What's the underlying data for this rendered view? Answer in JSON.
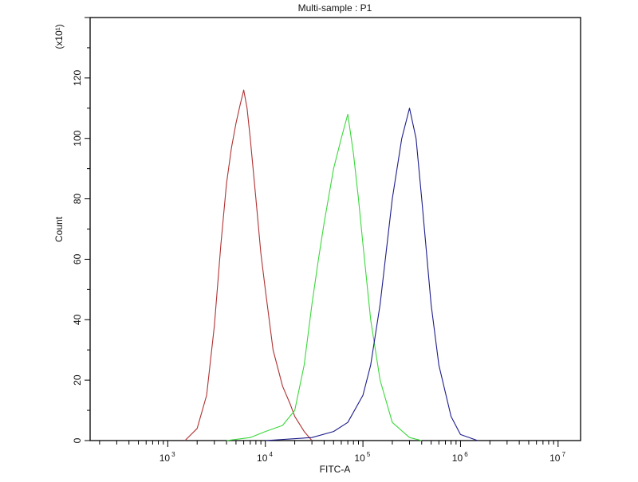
{
  "chart_data": {
    "type": "line",
    "title": "Multi-sample : P1",
    "xlabel": "FITC-A",
    "ylabel": "Count",
    "y_multiplier": "(x10¹)",
    "xscale": "log",
    "xlim": [
      160,
      17000000
    ],
    "ylim": [
      0,
      140
    ],
    "x_ticks": [
      1000,
      10000,
      100000,
      1000000,
      10000000
    ],
    "x_tick_labels": [
      [
        "10",
        "3"
      ],
      [
        "10",
        "4"
      ],
      [
        "10",
        "5"
      ],
      [
        "10",
        "6"
      ],
      [
        "10",
        "7"
      ]
    ],
    "y_ticks": [
      0,
      20,
      40,
      60,
      80,
      100,
      120
    ],
    "grid": false,
    "series": [
      {
        "color": "#b03232",
        "x": [
          1500,
          2000,
          2500,
          3000,
          3500,
          4000,
          4500,
          5000,
          5500,
          6000,
          6500,
          7000,
          8000,
          9000,
          10000,
          12000,
          15000,
          18000,
          20000,
          25000,
          30000
        ],
        "y": [
          0,
          4,
          15,
          38,
          65,
          85,
          97,
          105,
          111,
          116,
          110,
          100,
          80,
          62,
          50,
          30,
          18,
          12,
          8,
          3,
          0
        ]
      },
      {
        "color": "#3ad83a",
        "x": [
          4000,
          7000,
          10000,
          15000,
          20000,
          25000,
          30000,
          35000,
          40000,
          50000,
          60000,
          70000,
          80000,
          90000,
          100000,
          120000,
          150000,
          200000,
          300000,
          400000
        ],
        "y": [
          0,
          1,
          3,
          5,
          10,
          25,
          45,
          60,
          72,
          90,
          100,
          108,
          95,
          80,
          65,
          40,
          20,
          6,
          1,
          0
        ]
      },
      {
        "color": "#1c1c8c",
        "x": [
          10000,
          30000,
          50000,
          70000,
          100000,
          120000,
          150000,
          200000,
          250000,
          300000,
          350000,
          400000,
          500000,
          600000,
          800000,
          1000000,
          1500000
        ],
        "y": [
          0,
          1,
          3,
          6,
          15,
          25,
          45,
          80,
          100,
          110,
          100,
          80,
          45,
          25,
          8,
          2,
          0
        ]
      }
    ]
  }
}
